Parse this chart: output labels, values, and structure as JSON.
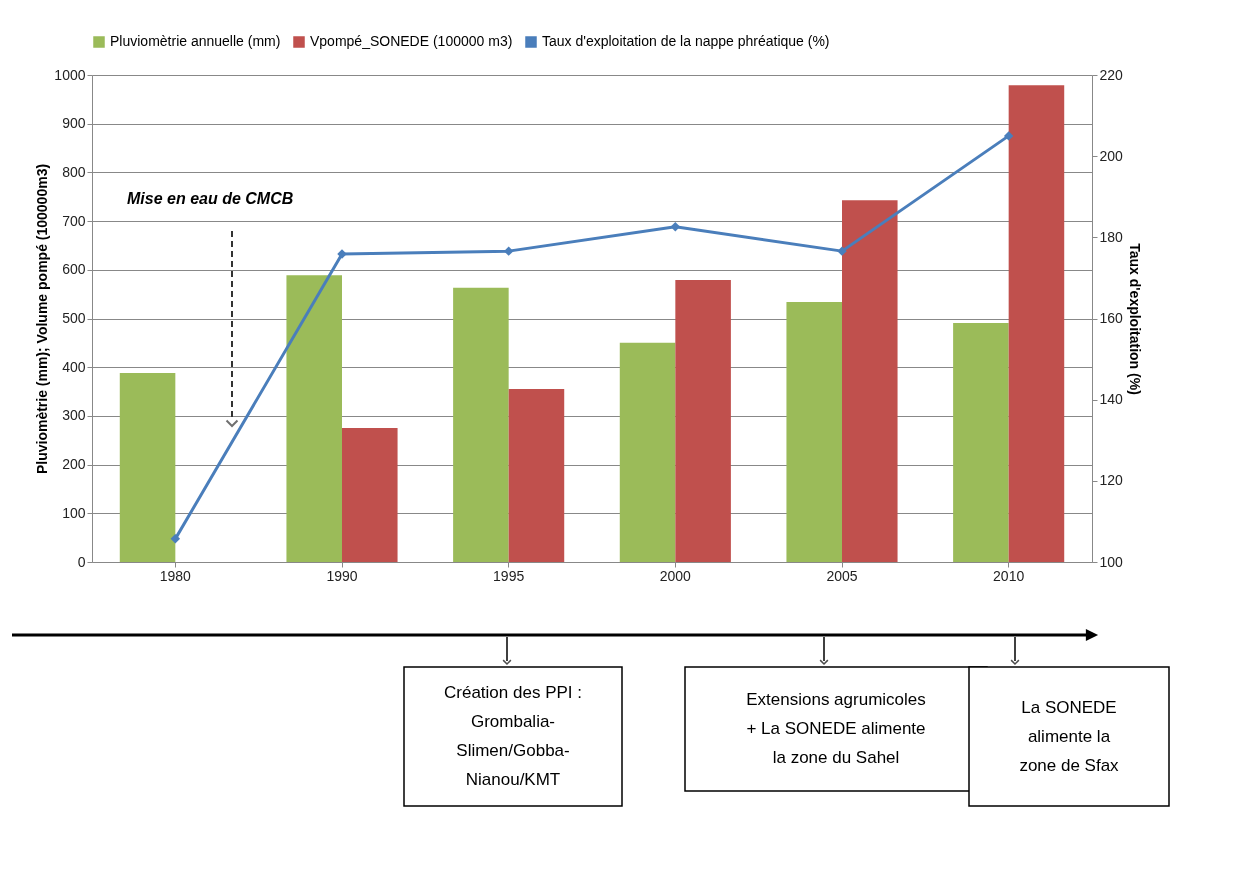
{
  "chart_data": {
    "type": "bar",
    "categories": [
      "1980",
      "1990",
      "1995",
      "2000",
      "2005",
      "2010"
    ],
    "series": [
      {
        "name": "Pluviomètrie annuelle (mm)",
        "color": "#9bbb59",
        "values": [
          388,
          589,
          563,
          450,
          534,
          491
        ]
      },
      {
        "name": "Vpompé_SONEDE (100000 m3)",
        "color": "#c0504d",
        "values": [
          null,
          275,
          355,
          579,
          743,
          979
        ]
      },
      {
        "name": "Taux d'exploitation de la nappe phréatique (%)",
        "color": "#4a7ebb",
        "type": "line",
        "axis": "y2",
        "marker": "diamond",
        "line_style": "solid",
        "values": [
          105.7,
          175.9,
          176.6,
          182.6,
          176.6,
          205.0
        ]
      }
    ],
    "ylabel": "Pluviomètrie (mm); Volume pompé (100000m3)",
    "y2label": "Taux d'exploitation (%)",
    "ylim": [
      0,
      1000
    ],
    "yticks": [
      0,
      100,
      200,
      300,
      400,
      500,
      600,
      700,
      800,
      900,
      {
        "value": 1000,
        "label": "1000"
      }
    ],
    "y2lim": [
      100,
      220
    ],
    "y2ticks": [
      100,
      120,
      140,
      160,
      180,
      200,
      220
    ],
    "grid": "y",
    "legend": "top",
    "annotations": [
      "Mise en eau de CMCB",
      "Création des PPI : Grombalia-Slimen/Gobba-Nianou/KMT",
      "Extensions agrumicoles + La SONEDE alimente la zone du Sahel",
      "La SONEDE alimente la zone de Sfax"
    ]
  }
}
